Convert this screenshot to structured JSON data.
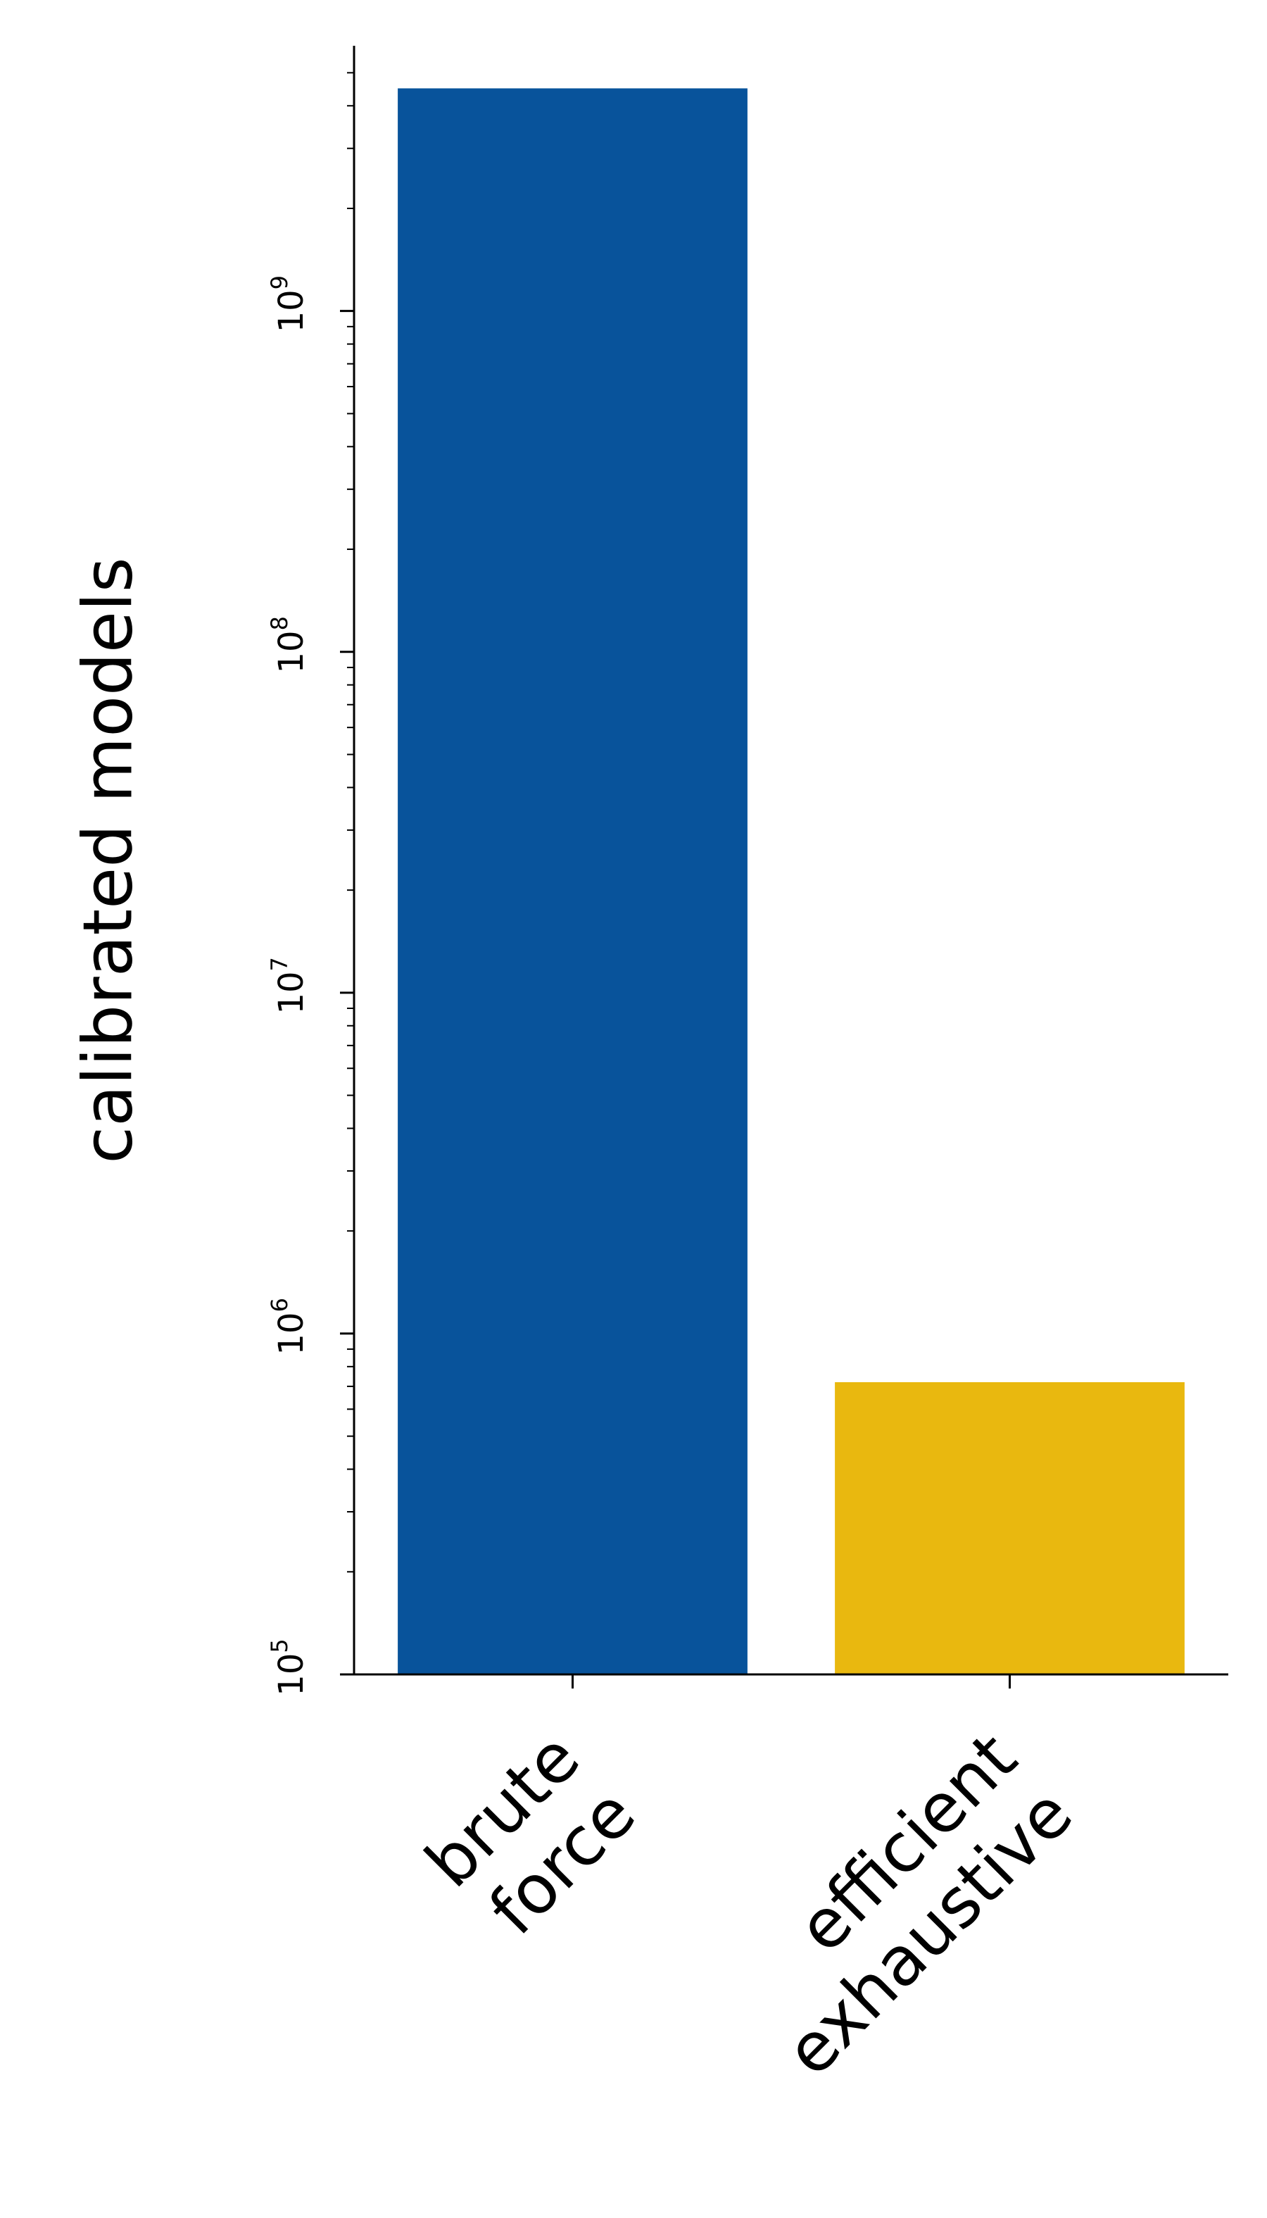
{
  "chart_data": {
    "type": "bar",
    "categories": [
      [
        "brute",
        "force"
      ],
      [
        "efficient",
        "exhaustive"
      ]
    ],
    "values": [
      4500000000,
      720000
    ],
    "colors": [
      "#08539b",
      "#e9b80f"
    ],
    "title": "",
    "xlabel": "",
    "ylabel": "calibrated models",
    "yscale": "log",
    "ylim": [
      100000,
      6000000000
    ],
    "yticks": [
      {
        "value": 100000,
        "base": "10",
        "exp": "5"
      },
      {
        "value": 1000000,
        "base": "10",
        "exp": "6"
      },
      {
        "value": 10000000,
        "base": "10",
        "exp": "7"
      },
      {
        "value": 100000000,
        "base": "10",
        "exp": "8"
      },
      {
        "value": 1000000000,
        "base": "10",
        "exp": "9"
      }
    ],
    "grid": false,
    "legend": "none"
  }
}
